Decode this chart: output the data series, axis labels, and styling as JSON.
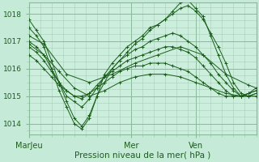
{
  "xlabel": "Pression niveau de la mer( hPa )",
  "bg_color": "#c6ead8",
  "plot_bg_color": "#cceedd",
  "grid_color_major": "#88bb99",
  "grid_color_minor": "#aaccbb",
  "line_color": "#1a5e1a",
  "marker": "+",
  "ylim": [
    1013.6,
    1018.4
  ],
  "yticks": [
    1014,
    1015,
    1016,
    1017,
    1018
  ],
  "ytick_fontsize": 6.5,
  "xtick_fontsize": 7,
  "xlabel_fontsize": 7.5,
  "series": [
    {
      "x": [
        0,
        1,
        2,
        3,
        4,
        5,
        6,
        7,
        8,
        9,
        10,
        11,
        12,
        13,
        14,
        15,
        16,
        17,
        18,
        19,
        20,
        21,
        22,
        23,
        24,
        25,
        26,
        27,
        28,
        29,
        30
      ],
      "y": [
        1017.8,
        1017.4,
        1017.0,
        1016.3,
        1015.5,
        1014.8,
        1014.2,
        1013.9,
        1014.3,
        1015.0,
        1015.8,
        1016.2,
        1016.5,
        1016.8,
        1017.0,
        1017.2,
        1017.5,
        1017.6,
        1017.8,
        1018.0,
        1018.2,
        1018.3,
        1018.1,
        1017.8,
        1017.3,
        1016.8,
        1016.2,
        1015.5,
        1015.1,
        1015.0,
        1015.1
      ]
    },
    {
      "x": [
        0,
        1,
        2,
        3,
        4,
        5,
        6,
        7,
        8,
        9,
        10,
        11,
        12,
        13,
        14,
        15,
        16,
        17,
        18,
        19,
        20,
        21,
        22,
        23,
        24,
        25,
        26,
        27,
        28,
        29,
        30
      ],
      "y": [
        1017.5,
        1017.2,
        1016.8,
        1016.0,
        1015.2,
        1014.6,
        1014.0,
        1013.8,
        1014.2,
        1015.0,
        1015.5,
        1016.0,
        1016.3,
        1016.6,
        1016.9,
        1017.1,
        1017.4,
        1017.6,
        1017.8,
        1018.1,
        1018.4,
        1018.5,
        1018.2,
        1017.9,
        1017.2,
        1016.5,
        1015.8,
        1015.3,
        1015.0,
        1015.1,
        1015.3
      ]
    },
    {
      "x": [
        0,
        1,
        2,
        3,
        4,
        5,
        6,
        7,
        8,
        9,
        10,
        11,
        12,
        13,
        14,
        15,
        16,
        17,
        18,
        19,
        20,
        21,
        22,
        23,
        24,
        25,
        26,
        27,
        28,
        29,
        30
      ],
      "y": [
        1017.0,
        1016.8,
        1016.5,
        1016.0,
        1015.5,
        1015.0,
        1014.8,
        1014.6,
        1014.9,
        1015.3,
        1015.7,
        1016.0,
        1016.3,
        1016.5,
        1016.7,
        1016.8,
        1017.0,
        1017.1,
        1017.2,
        1017.3,
        1017.2,
        1017.0,
        1016.8,
        1016.5,
        1016.2,
        1015.8,
        1015.5,
        1015.2,
        1015.0,
        1015.0,
        1015.1
      ]
    },
    {
      "x": [
        0,
        1,
        2,
        3,
        4,
        5,
        6,
        7,
        8,
        9,
        10,
        11,
        12,
        13,
        14,
        15,
        16,
        17,
        18,
        19,
        20,
        21,
        22,
        23,
        24,
        25,
        26,
        27,
        28,
        29,
        30
      ],
      "y": [
        1016.8,
        1016.6,
        1016.3,
        1015.9,
        1015.5,
        1015.2,
        1015.0,
        1014.9,
        1015.1,
        1015.4,
        1015.7,
        1015.9,
        1016.1,
        1016.3,
        1016.4,
        1016.5,
        1016.6,
        1016.7,
        1016.8,
        1016.8,
        1016.7,
        1016.6,
        1016.4,
        1016.1,
        1015.8,
        1015.5,
        1015.2,
        1015.0,
        1015.0,
        1015.1,
        1015.2
      ]
    },
    {
      "x": [
        0,
        1,
        2,
        3,
        4,
        5,
        6,
        7,
        8,
        9,
        10,
        11,
        12,
        13,
        14,
        15,
        16,
        17,
        18,
        19,
        20,
        21,
        22,
        23,
        24,
        25,
        26,
        27,
        28,
        29,
        30
      ],
      "y": [
        1016.5,
        1016.3,
        1016.0,
        1015.7,
        1015.4,
        1015.2,
        1015.0,
        1015.0,
        1015.1,
        1015.3,
        1015.5,
        1015.7,
        1015.9,
        1016.0,
        1016.1,
        1016.1,
        1016.2,
        1016.2,
        1016.2,
        1016.1,
        1016.0,
        1015.9,
        1015.7,
        1015.5,
        1015.3,
        1015.1,
        1015.0,
        1015.0,
        1015.0,
        1015.1,
        1015.2
      ]
    },
    {
      "x": [
        0,
        2,
        5,
        8,
        11,
        14,
        17,
        20,
        23,
        26,
        29,
        30
      ],
      "y": [
        1017.2,
        1016.9,
        1015.8,
        1015.5,
        1015.8,
        1016.2,
        1016.5,
        1016.8,
        1016.5,
        1015.8,
        1015.4,
        1015.3
      ]
    },
    {
      "x": [
        0,
        2,
        4,
        6,
        8,
        10,
        12,
        14,
        16,
        18,
        20,
        22,
        24,
        26,
        28,
        30
      ],
      "y": [
        1016.9,
        1016.5,
        1015.9,
        1015.3,
        1015.0,
        1015.2,
        1015.5,
        1015.7,
        1015.8,
        1015.8,
        1015.7,
        1015.5,
        1015.3,
        1015.1,
        1015.0,
        1015.0
      ]
    }
  ],
  "xmin": 0,
  "xmax": 30,
  "xtick_pos": [
    0,
    13.5,
    22
  ],
  "xtick_labels": [
    "MarJeu",
    "Mer",
    "Ven"
  ],
  "minor_xtick_step": 1.5,
  "minor_ytick_step": 0.25
}
